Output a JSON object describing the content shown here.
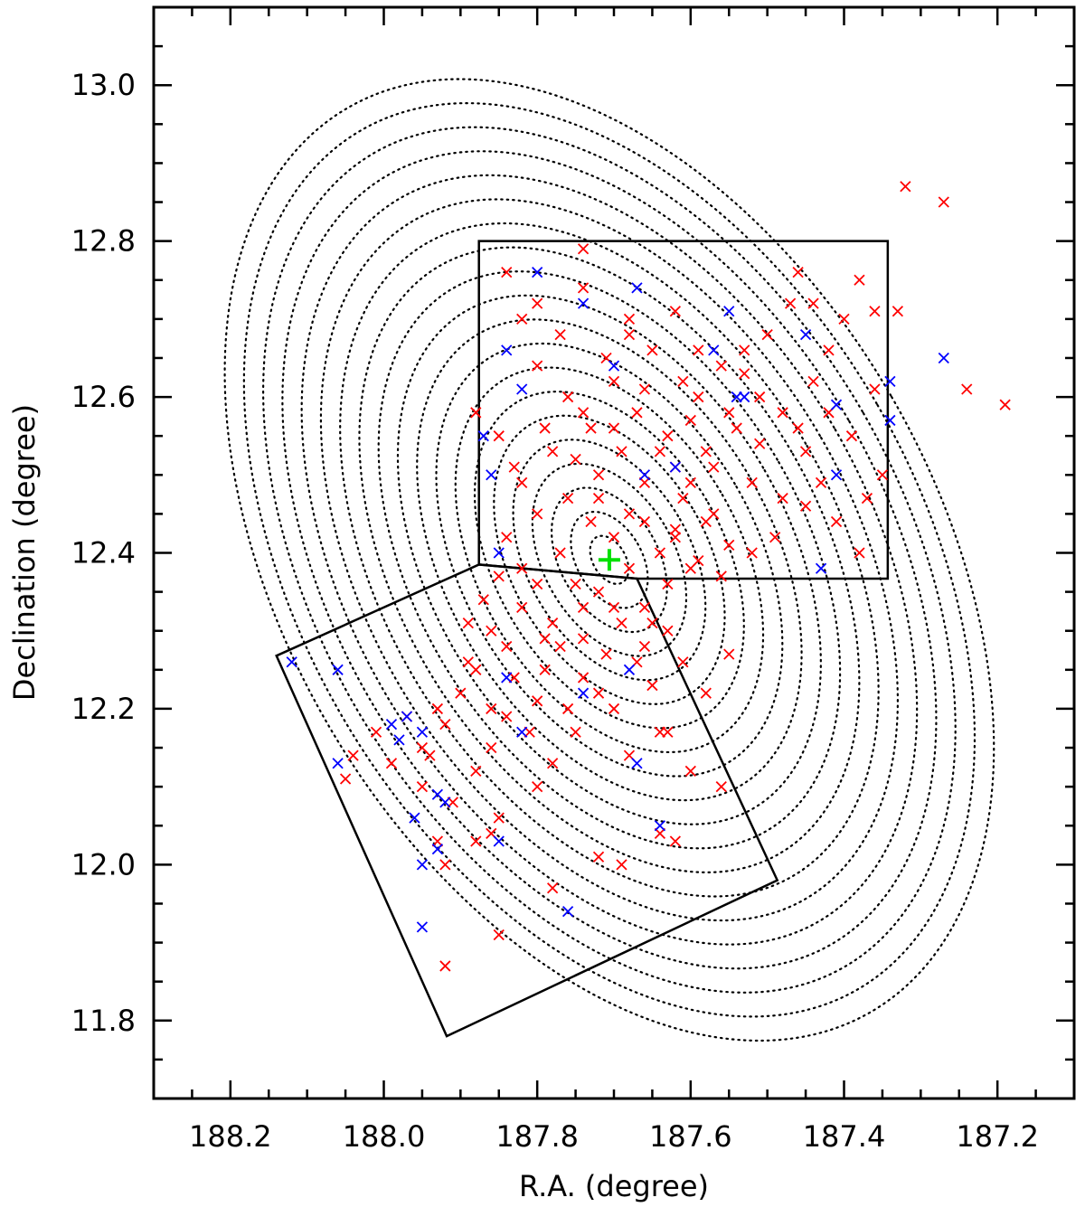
{
  "chart_data": {
    "type": "scatter",
    "title": "",
    "xlabel": "R.A. (degree)",
    "ylabel": "Declination (degree)",
    "xlim": [
      188.3,
      187.1
    ],
    "ylim": [
      11.7,
      13.1
    ],
    "x_reversed": true,
    "x_ticks": [
      188.2,
      188.0,
      187.8,
      187.6,
      187.4,
      187.2
    ],
    "x_tick_labels": [
      "188.2",
      "188.0",
      "187.8",
      "187.6",
      "187.4",
      "187.2"
    ],
    "y_ticks": [
      11.8,
      12.0,
      12.2,
      12.4,
      12.6,
      12.8,
      13.0
    ],
    "y_tick_labels": [
      "11.8",
      "12.0",
      "12.2",
      "12.4",
      "12.6",
      "12.8",
      "13.0"
    ],
    "grid": false,
    "center_marker": {
      "x": 187.706,
      "y": 12.391,
      "marker": "plus",
      "color": "#00e000"
    },
    "contours": {
      "center": [
        187.706,
        12.391
      ],
      "count": 20,
      "outer_semi_x_deg": 0.425,
      "outer_semi_y_deg": 0.67,
      "rotation_deg": -30,
      "style": "dotted",
      "color": "#000000"
    },
    "fields": [
      {
        "name": "field-north",
        "vertices": [
          [
            187.876,
            12.385
          ],
          [
            187.876,
            12.8
          ],
          [
            187.343,
            12.8
          ],
          [
            187.343,
            12.367
          ],
          [
            187.67,
            12.367
          ]
        ]
      },
      {
        "name": "field-south",
        "vertices": [
          [
            188.14,
            12.268
          ],
          [
            187.876,
            12.385
          ],
          [
            187.67,
            12.367
          ],
          [
            187.487,
            11.98
          ],
          [
            187.918,
            11.78
          ]
        ]
      }
    ],
    "series": [
      {
        "color": "#ff0000",
        "marker": "x",
        "points": [
          [
            187.72,
            12.35
          ],
          [
            187.69,
            12.31
          ],
          [
            187.74,
            12.29
          ],
          [
            187.66,
            12.33
          ],
          [
            187.75,
            12.36
          ],
          [
            187.7,
            12.42
          ],
          [
            187.68,
            12.45
          ],
          [
            187.73,
            12.44
          ],
          [
            187.64,
            12.4
          ],
          [
            187.77,
            12.4
          ],
          [
            187.71,
            12.27
          ],
          [
            187.67,
            12.26
          ],
          [
            187.78,
            12.31
          ],
          [
            187.63,
            12.36
          ],
          [
            187.8,
            12.36
          ],
          [
            187.72,
            12.5
          ],
          [
            187.66,
            12.49
          ],
          [
            187.76,
            12.47
          ],
          [
            187.62,
            12.43
          ],
          [
            187.59,
            12.39
          ],
          [
            187.82,
            12.33
          ],
          [
            187.74,
            12.24
          ],
          [
            187.65,
            12.23
          ],
          [
            187.84,
            12.28
          ],
          [
            187.79,
            12.25
          ],
          [
            187.61,
            12.47
          ],
          [
            187.69,
            12.53
          ],
          [
            187.78,
            12.53
          ],
          [
            187.57,
            12.45
          ],
          [
            187.55,
            12.41
          ],
          [
            187.86,
            12.3
          ],
          [
            187.8,
            12.21
          ],
          [
            187.7,
            12.2
          ],
          [
            187.62,
            12.51
          ],
          [
            187.73,
            12.56
          ],
          [
            187.82,
            12.49
          ],
          [
            187.58,
            12.53
          ],
          [
            187.67,
            12.58
          ],
          [
            187.52,
            12.49
          ],
          [
            187.88,
            12.25
          ],
          [
            187.84,
            12.19
          ],
          [
            187.75,
            12.17
          ],
          [
            187.64,
            12.17
          ],
          [
            187.6,
            12.57
          ],
          [
            187.76,
            12.6
          ],
          [
            187.85,
            12.55
          ],
          [
            187.55,
            12.58
          ],
          [
            187.7,
            12.62
          ],
          [
            187.51,
            12.54
          ],
          [
            187.48,
            12.47
          ],
          [
            187.9,
            12.22
          ],
          [
            187.86,
            12.15
          ],
          [
            187.78,
            12.13
          ],
          [
            187.68,
            12.14
          ],
          [
            187.61,
            12.62
          ],
          [
            187.8,
            12.64
          ],
          [
            187.88,
            12.58
          ],
          [
            187.53,
            12.63
          ],
          [
            187.65,
            12.66
          ],
          [
            187.46,
            12.56
          ],
          [
            187.92,
            12.18
          ],
          [
            187.88,
            12.12
          ],
          [
            187.8,
            12.1
          ],
          [
            187.59,
            12.66
          ],
          [
            187.77,
            12.68
          ],
          [
            187.5,
            12.68
          ],
          [
            187.68,
            12.7
          ],
          [
            187.44,
            12.62
          ],
          [
            187.94,
            12.14
          ],
          [
            187.91,
            12.08
          ],
          [
            187.85,
            12.06
          ],
          [
            187.62,
            12.71
          ],
          [
            187.8,
            12.72
          ],
          [
            187.47,
            12.72
          ],
          [
            187.42,
            12.66
          ],
          [
            187.95,
            12.1
          ],
          [
            187.88,
            12.03
          ],
          [
            187.84,
            12.76
          ],
          [
            187.74,
            12.79
          ],
          [
            187.46,
            12.76
          ],
          [
            187.4,
            12.7
          ],
          [
            187.38,
            12.75
          ],
          [
            187.36,
            12.61
          ],
          [
            187.39,
            12.55
          ],
          [
            187.37,
            12.47
          ],
          [
            187.35,
            12.5
          ],
          [
            187.42,
            12.58
          ],
          [
            187.38,
            12.4
          ],
          [
            187.45,
            12.46
          ],
          [
            187.49,
            12.42
          ],
          [
            187.52,
            12.4
          ],
          [
            187.56,
            12.37
          ],
          [
            187.58,
            12.44
          ],
          [
            187.6,
            12.38
          ],
          [
            187.63,
            12.3
          ],
          [
            187.66,
            12.28
          ],
          [
            187.72,
            12.22
          ],
          [
            187.76,
            12.2
          ],
          [
            187.81,
            12.17
          ],
          [
            187.83,
            12.24
          ],
          [
            187.86,
            12.2
          ],
          [
            187.89,
            12.26
          ],
          [
            187.93,
            12.2
          ],
          [
            187.95,
            12.15
          ],
          [
            187.97,
            12.19
          ],
          [
            187.99,
            12.13
          ],
          [
            188.01,
            12.17
          ],
          [
            188.04,
            12.14
          ],
          [
            188.05,
            12.11
          ],
          [
            187.92,
            12.0
          ],
          [
            187.93,
            12.03
          ],
          [
            187.86,
            12.04
          ],
          [
            187.78,
            11.97
          ],
          [
            187.72,
            12.01
          ],
          [
            187.69,
            12.0
          ],
          [
            187.85,
            11.91
          ],
          [
            187.92,
            11.87
          ],
          [
            187.64,
            12.04
          ],
          [
            187.62,
            12.03
          ],
          [
            187.56,
            12.1
          ],
          [
            187.6,
            12.12
          ],
          [
            187.63,
            12.17
          ],
          [
            187.58,
            12.22
          ],
          [
            187.55,
            12.27
          ],
          [
            187.61,
            12.26
          ],
          [
            187.65,
            12.31
          ],
          [
            187.7,
            12.33
          ],
          [
            187.74,
            12.33
          ],
          [
            187.79,
            12.29
          ],
          [
            187.82,
            12.38
          ],
          [
            187.84,
            12.42
          ],
          [
            187.8,
            12.45
          ],
          [
            187.83,
            12.51
          ],
          [
            187.79,
            12.56
          ],
          [
            187.74,
            12.58
          ],
          [
            187.71,
            12.65
          ],
          [
            187.66,
            12.61
          ],
          [
            187.63,
            12.55
          ],
          [
            187.6,
            12.49
          ],
          [
            187.57,
            12.51
          ],
          [
            187.54,
            12.56
          ],
          [
            187.51,
            12.6
          ],
          [
            187.48,
            12.58
          ],
          [
            187.45,
            12.53
          ],
          [
            187.43,
            12.49
          ],
          [
            187.41,
            12.44
          ],
          [
            187.32,
            12.87
          ],
          [
            187.27,
            12.85
          ],
          [
            187.24,
            12.61
          ],
          [
            187.19,
            12.59
          ],
          [
            187.33,
            12.71
          ],
          [
            187.36,
            12.71
          ],
          [
            187.77,
            12.28
          ],
          [
            187.87,
            12.34
          ],
          [
            187.89,
            12.31
          ],
          [
            187.85,
            12.37
          ],
          [
            187.68,
            12.38
          ],
          [
            187.62,
            12.42
          ],
          [
            187.66,
            12.44
          ],
          [
            187.72,
            12.47
          ],
          [
            187.75,
            12.52
          ],
          [
            187.7,
            12.56
          ],
          [
            187.64,
            12.53
          ],
          [
            187.59,
            12.6
          ],
          [
            187.56,
            12.64
          ],
          [
            187.53,
            12.66
          ],
          [
            187.68,
            12.68
          ],
          [
            187.74,
            12.74
          ],
          [
            187.82,
            12.7
          ],
          [
            187.44,
            12.72
          ]
        ]
      },
      {
        "color": "#0000ff",
        "marker": "x",
        "points": [
          [
            188.12,
            12.26
          ],
          [
            188.06,
            12.25
          ],
          [
            187.99,
            12.18
          ],
          [
            187.98,
            12.16
          ],
          [
            187.97,
            12.19
          ],
          [
            188.06,
            12.13
          ],
          [
            187.96,
            12.06
          ],
          [
            187.95,
            12.17
          ],
          [
            187.93,
            12.09
          ],
          [
            187.92,
            12.08
          ],
          [
            187.93,
            12.02
          ],
          [
            187.95,
            12.0
          ],
          [
            187.95,
            11.92
          ],
          [
            187.85,
            12.03
          ],
          [
            187.84,
            12.24
          ],
          [
            187.82,
            12.17
          ],
          [
            187.76,
            11.94
          ],
          [
            187.74,
            12.22
          ],
          [
            187.68,
            12.25
          ],
          [
            187.67,
            12.13
          ],
          [
            187.64,
            12.05
          ],
          [
            187.85,
            12.4
          ],
          [
            187.86,
            12.5
          ],
          [
            187.87,
            12.55
          ],
          [
            187.84,
            12.66
          ],
          [
            187.82,
            12.61
          ],
          [
            187.8,
            12.76
          ],
          [
            187.74,
            12.72
          ],
          [
            187.7,
            12.64
          ],
          [
            187.67,
            12.74
          ],
          [
            187.66,
            12.5
          ],
          [
            187.62,
            12.51
          ],
          [
            187.57,
            12.66
          ],
          [
            187.55,
            12.71
          ],
          [
            187.54,
            12.6
          ],
          [
            187.53,
            12.6
          ],
          [
            187.45,
            12.68
          ],
          [
            187.41,
            12.59
          ],
          [
            187.41,
            12.5
          ],
          [
            187.43,
            12.38
          ],
          [
            187.34,
            12.62
          ],
          [
            187.34,
            12.57
          ],
          [
            187.27,
            12.65
          ]
        ]
      }
    ]
  }
}
